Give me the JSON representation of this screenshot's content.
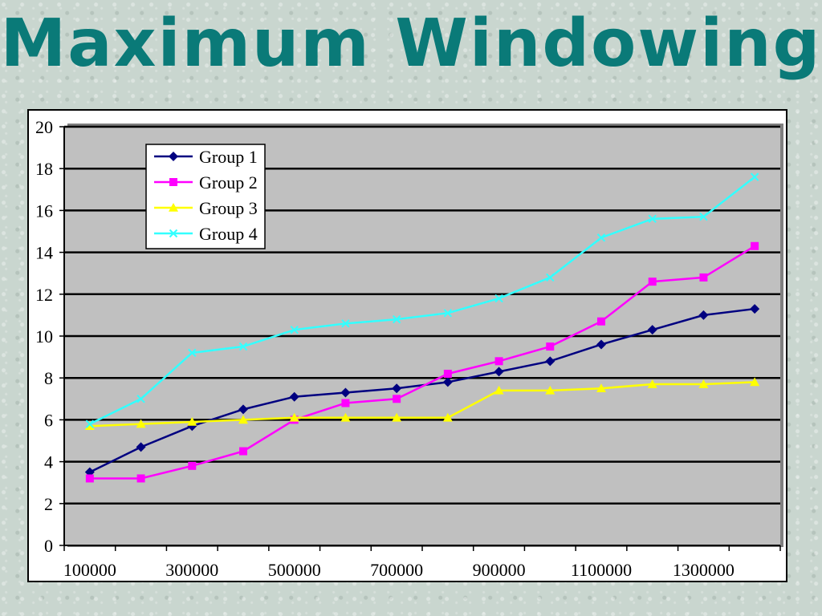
{
  "slide": {
    "title": "Maximum Windowing"
  },
  "chart_data": {
    "type": "line",
    "title": "Maximum Windowing",
    "xlabel": "",
    "ylabel": "",
    "x": [
      100000,
      200000,
      300000,
      400000,
      500000,
      600000,
      700000,
      800000,
      900000,
      1000000,
      1100000,
      1200000,
      1300000,
      1400000
    ],
    "x_tick_labels": [
      "100000",
      "300000",
      "500000",
      "700000",
      "900000",
      "1100000",
      "1300000"
    ],
    "y_tick_labels": [
      "0",
      "2",
      "4",
      "6",
      "8",
      "10",
      "12",
      "14",
      "16",
      "18",
      "20"
    ],
    "ylim": [
      0,
      20
    ],
    "grid": true,
    "legend_position": "top-left",
    "plot_background": "#c0c0c0",
    "series": [
      {
        "name": "Group 1",
        "color": "#000080",
        "marker": "diamond",
        "values": [
          3.5,
          4.7,
          5.7,
          6.5,
          7.1,
          7.3,
          7.5,
          7.8,
          8.3,
          8.8,
          9.6,
          10.3,
          11.0,
          11.3
        ]
      },
      {
        "name": "Group 2",
        "color": "#ff00ff",
        "marker": "square",
        "values": [
          3.2,
          3.2,
          3.8,
          4.5,
          6.0,
          6.8,
          7.0,
          8.2,
          8.8,
          9.5,
          10.7,
          12.6,
          12.8,
          14.3
        ]
      },
      {
        "name": "Group 3",
        "color": "#ffff00",
        "marker": "triangle",
        "values": [
          5.7,
          5.8,
          5.9,
          6.0,
          6.1,
          6.1,
          6.1,
          6.1,
          7.4,
          7.4,
          7.5,
          7.7,
          7.7,
          7.8
        ]
      },
      {
        "name": "Group 4",
        "color": "#33ffff",
        "marker": "x",
        "values": [
          5.8,
          7.0,
          9.2,
          9.5,
          10.3,
          10.6,
          10.8,
          11.1,
          11.8,
          12.8,
          14.7,
          15.6,
          15.7,
          17.6
        ]
      }
    ]
  }
}
